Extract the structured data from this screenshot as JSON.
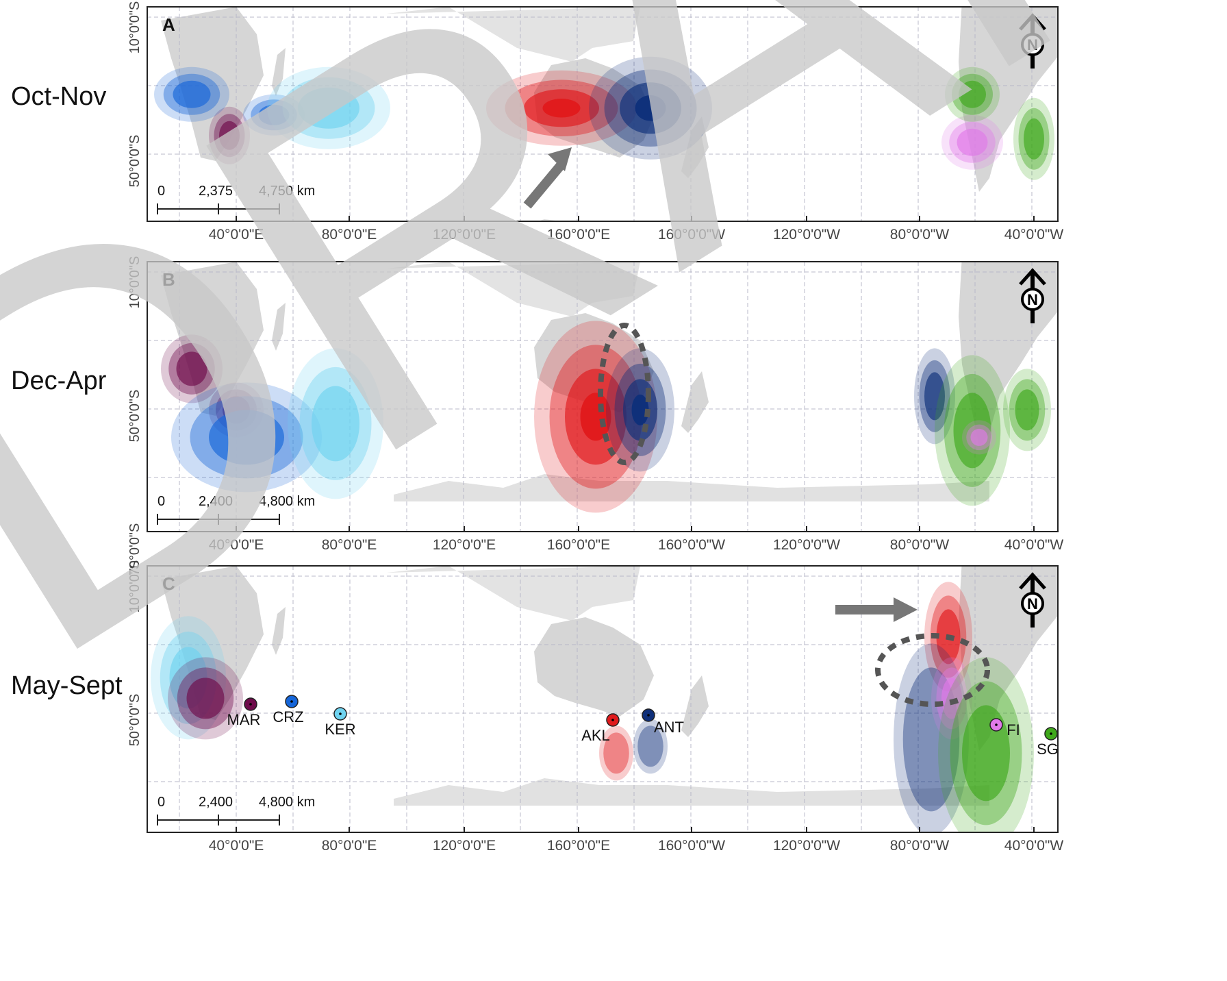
{
  "season_labels": [
    "Oct-Nov",
    "Dec-Apr",
    "May-Sept"
  ],
  "panels": [
    {
      "letter": "A",
      "lat_ticks": [
        "10°0'0\"S",
        "50°0'0\"S"
      ],
      "lon_ticks": [
        "40°0'0\"E",
        "80°0'0\"E",
        "120°0'0\"E",
        "160°0'0\"E",
        "160°0'0\"W",
        "120°0'0\"W",
        "80°0'0\"W",
        "40°0'0\"W"
      ],
      "scale": {
        "zero": "0",
        "mid": "2,375",
        "end": "4,750 km"
      }
    },
    {
      "letter": "B",
      "lat_ticks": [
        "10°0'0\"S",
        "50°0'0\"S",
        "70°0'0\"S"
      ],
      "lon_ticks": [
        "40°0'0\"E",
        "80°0'0\"E",
        "120°0'0\"E",
        "160°0'0\"E",
        "160°0'0\"W",
        "120°0'0\"W",
        "80°0'0\"W",
        "40°0'0\"W"
      ],
      "scale": {
        "zero": "0",
        "mid": "2,400",
        "end": "4,800 km"
      }
    },
    {
      "letter": "C",
      "lat_ticks": [
        "10°0'0\"S",
        "50°0'0\"S"
      ],
      "lon_ticks": [
        "40°0'0\"E",
        "80°0'0\"E",
        "120°0'0\"E",
        "160°0'0\"E",
        "160°0'0\"W",
        "120°0'0\"W",
        "80°0'0\"W",
        "40°0'0\"W"
      ],
      "scale": {
        "zero": "0",
        "mid": "2,400",
        "end": "4,800 km"
      }
    }
  ],
  "colonies": [
    {
      "code": "MAR",
      "color": "#6e0b4a"
    },
    {
      "code": "CRZ",
      "color": "#1565d8"
    },
    {
      "code": "KER",
      "color": "#6fd3f0"
    },
    {
      "code": "AKL",
      "color": "#e0191b"
    },
    {
      "code": "ANT",
      "color": "#0e2f7a"
    },
    {
      "code": "FI",
      "color": "#e07ae8"
    },
    {
      "code": "SG",
      "color": "#3fa81b"
    }
  ],
  "north_symbol": "N",
  "watermark": "DRAFT"
}
